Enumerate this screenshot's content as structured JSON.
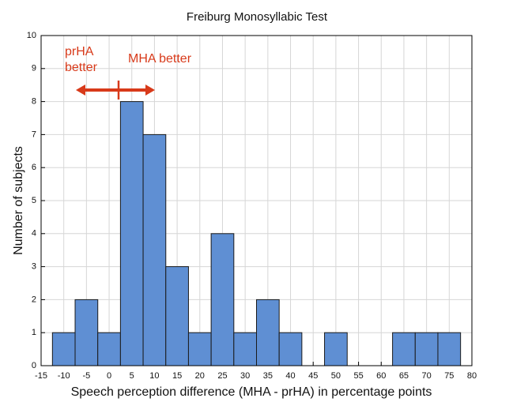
{
  "chart_data": {
    "type": "histogram",
    "title": "Freiburg Monosyllabic Test",
    "xlabel": "Speech perception difference (MHA - prHA) in percentage points",
    "ylabel": "Number of subjects",
    "bins": [
      -12.5,
      -7.5,
      -2.5,
      2.5,
      7.5,
      12.5,
      17.5,
      22.5,
      27.5,
      32.5,
      37.5,
      42.5,
      47.5,
      52.5,
      57.5,
      62.5,
      67.5,
      72.5,
      77.5
    ],
    "values": [
      1,
      2,
      1,
      8,
      7,
      3,
      1,
      4,
      1,
      2,
      1,
      0,
      1,
      0,
      0,
      1,
      1,
      1
    ],
    "color": "#5f8fd3",
    "xlim": [
      -15,
      80
    ],
    "xticks": [
      -15,
      -10,
      -5,
      0,
      5,
      10,
      15,
      20,
      25,
      30,
      35,
      40,
      45,
      50,
      55,
      60,
      65,
      70,
      75,
      80
    ],
    "ylim": [
      0,
      10
    ],
    "yticks": [
      0,
      1,
      2,
      3,
      4,
      5,
      6,
      7,
      8,
      9,
      10
    ],
    "grid": true,
    "annotations": [
      {
        "lines": [
          "prHA",
          "better"
        ],
        "color": "#d83a1a"
      },
      {
        "lines": [
          "MHA better"
        ],
        "color": "#d83a1a"
      }
    ]
  }
}
